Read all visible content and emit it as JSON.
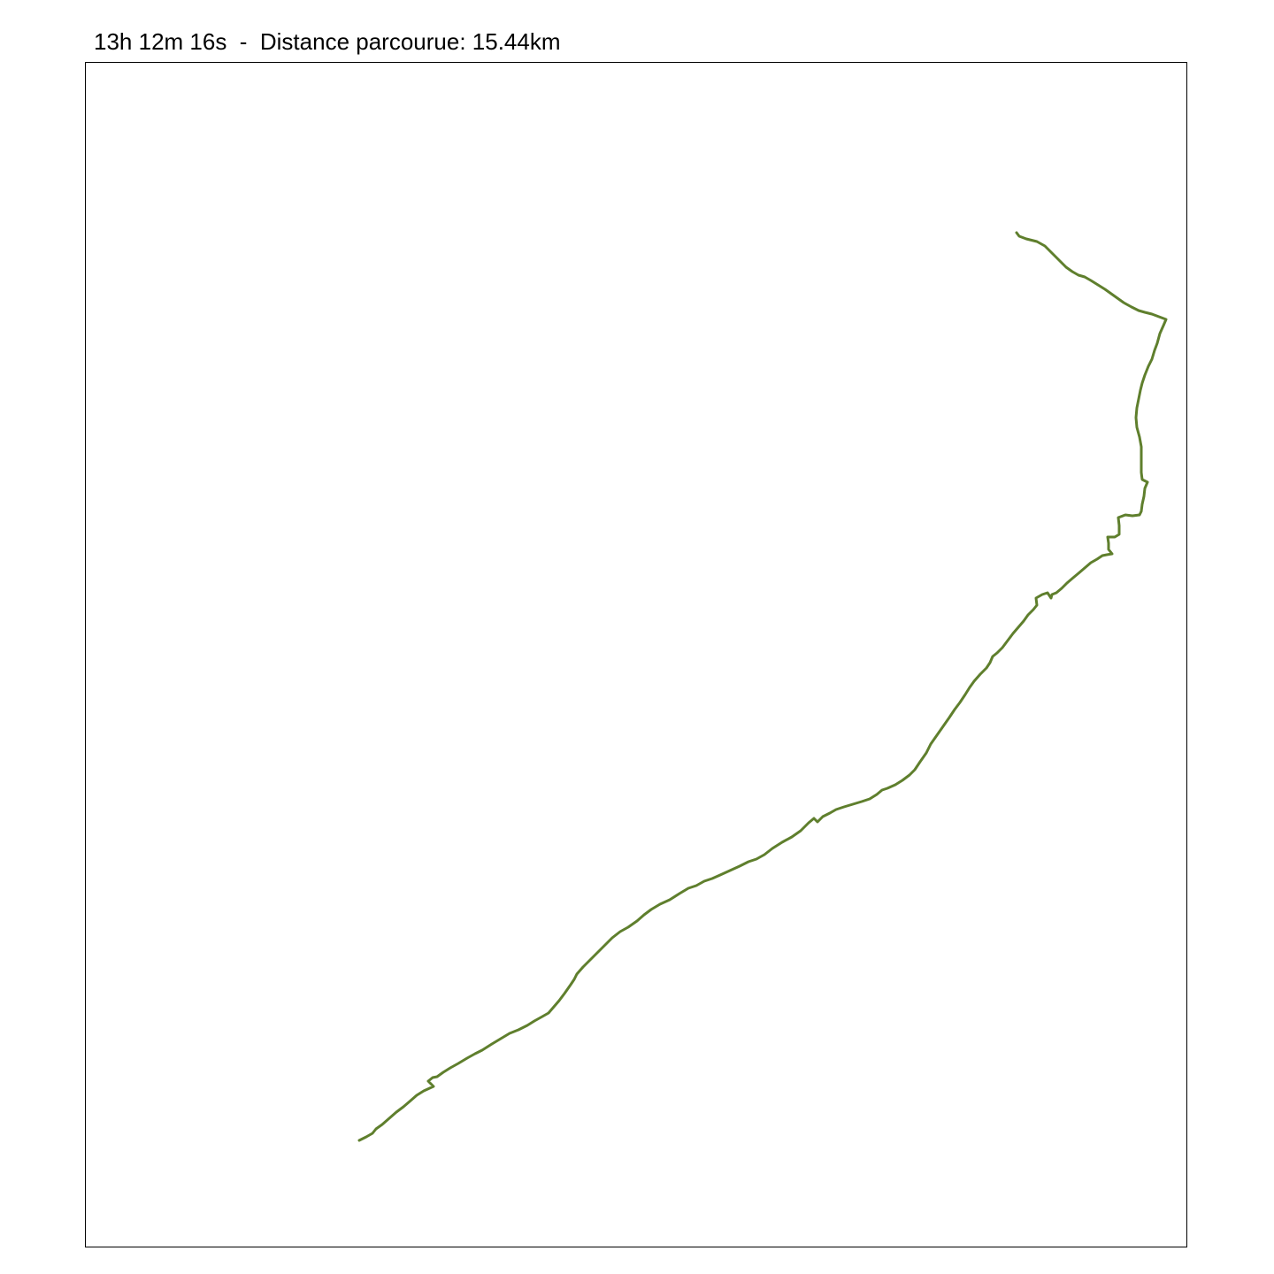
{
  "title": "13h 12m 16s  -  Distance parcourue: 15.44km",
  "track": {
    "color": "#5f7f2d"
  }
}
